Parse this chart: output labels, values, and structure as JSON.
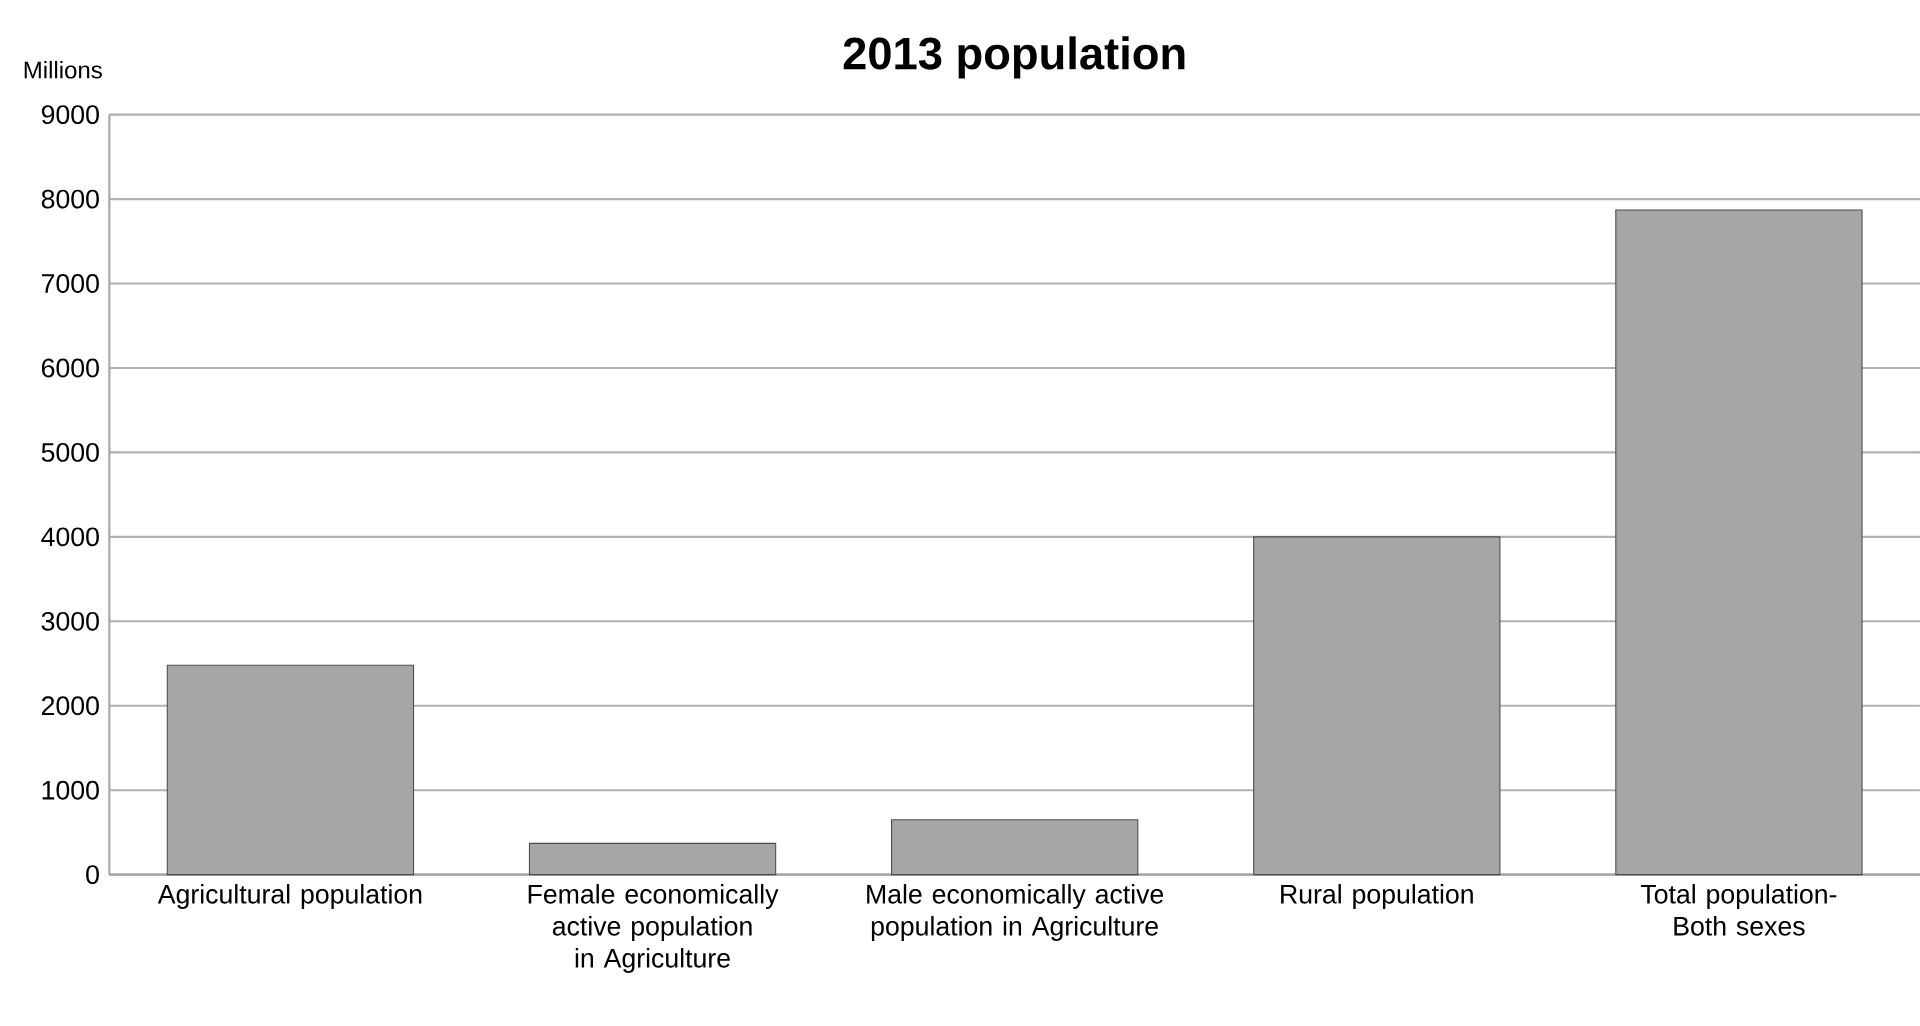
{
  "chart_data": {
    "type": "bar",
    "title": "2013 population",
    "ylabel": "Millions",
    "categories": [
      "Agricultural population",
      "Female economically active population in Agriculture",
      "Male economically active population in Agriculture",
      "Rural population",
      "Total population- Both sexes"
    ],
    "values": [
      2480,
      370,
      650,
      4000,
      7870
    ],
    "color": "#a6a6a6",
    "ylim": [
      0,
      9000
    ],
    "yticks": [
      0,
      1000,
      2000,
      3000,
      4000,
      5000,
      6000,
      7000,
      8000,
      9000
    ],
    "grid": "y"
  }
}
